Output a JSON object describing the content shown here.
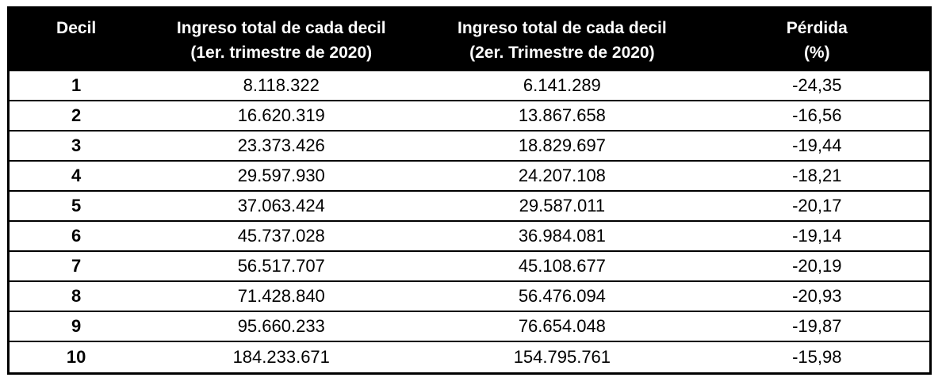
{
  "chart_data": {
    "type": "table",
    "title": "",
    "columns": [
      {
        "label": "Decil",
        "line1": "Decil",
        "line2": ""
      },
      {
        "label": "Ingreso total de cada decil (1er. trimestre de 2020)",
        "line1": "Ingreso total de cada decil",
        "line2": "(1er. trimestre de 2020)"
      },
      {
        "label": "Ingreso total de cada decil (2er. Trimestre de 2020)",
        "line1": "Ingreso total de cada decil",
        "line2": "(2er. Trimestre de 2020)"
      },
      {
        "label": "Pérdida (%)",
        "line1": "Pérdida",
        "line2": "(%)"
      }
    ],
    "rows": [
      {
        "decil": "1",
        "ingreso_t1": "8.118.322",
        "ingreso_t2": "6.141.289",
        "perdida_pct": "-24,35"
      },
      {
        "decil": "2",
        "ingreso_t1": "16.620.319",
        "ingreso_t2": "13.867.658",
        "perdida_pct": "-16,56"
      },
      {
        "decil": "3",
        "ingreso_t1": "23.373.426",
        "ingreso_t2": "18.829.697",
        "perdida_pct": "-19,44"
      },
      {
        "decil": "4",
        "ingreso_t1": "29.597.930",
        "ingreso_t2": "24.207.108",
        "perdida_pct": "-18,21"
      },
      {
        "decil": "5",
        "ingreso_t1": "37.063.424",
        "ingreso_t2": "29.587.011",
        "perdida_pct": "-20,17"
      },
      {
        "decil": "6",
        "ingreso_t1": "45.737.028",
        "ingreso_t2": "36.984.081",
        "perdida_pct": "-19,14"
      },
      {
        "decil": "7",
        "ingreso_t1": "56.517.707",
        "ingreso_t2": "45.108.677",
        "perdida_pct": "-20,19"
      },
      {
        "decil": "8",
        "ingreso_t1": "71.428.840",
        "ingreso_t2": "56.476.094",
        "perdida_pct": "-20,93"
      },
      {
        "decil": "9",
        "ingreso_t1": "95.660.233",
        "ingreso_t2": "76.654.048",
        "perdida_pct": "-19,87"
      },
      {
        "decil": "10",
        "ingreso_t1": "184.233.671",
        "ingreso_t2": "154.795.761",
        "perdida_pct": "-15,98"
      }
    ]
  },
  "colors": {
    "header_bg": "#000000",
    "header_text": "#ffffff",
    "body_bg": "#ffffff",
    "body_text": "#000000",
    "border": "#000000"
  }
}
